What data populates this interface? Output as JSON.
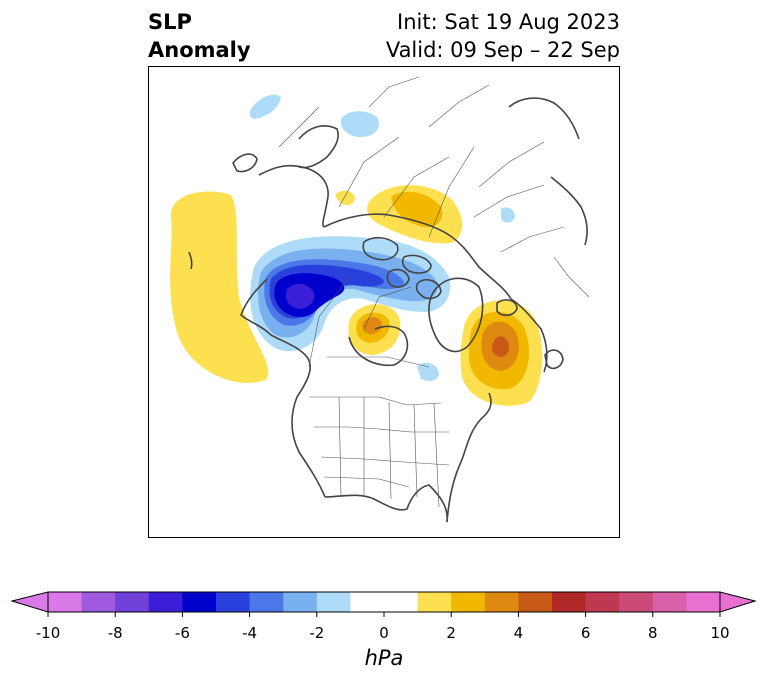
{
  "title": {
    "left_line1": "SLP",
    "left_line2": "Anomaly",
    "init": "Init: Sat 19 Aug 2023",
    "valid": "Valid: 09 Sep – 22 Sep"
  },
  "colorbar": {
    "unit": "hPa",
    "ticks": [
      "-10",
      "-8",
      "-6",
      "-4",
      "-2",
      "0",
      "2",
      "4",
      "6",
      "8",
      "10"
    ],
    "bins": [
      {
        "range": [
          -10,
          -9
        ],
        "color": "#d97ae8"
      },
      {
        "range": [
          -9,
          -8
        ],
        "color": "#a05ae0"
      },
      {
        "range": [
          -8,
          -7
        ],
        "color": "#7040d8"
      },
      {
        "range": [
          -7,
          -6
        ],
        "color": "#3a1ed8"
      },
      {
        "range": [
          -6,
          -5
        ],
        "color": "#0000cc"
      },
      {
        "range": [
          -5,
          -4
        ],
        "color": "#2a40dd"
      },
      {
        "range": [
          -4,
          -3
        ],
        "color": "#4a78e8"
      },
      {
        "range": [
          -3,
          -2
        ],
        "color": "#78b0f0"
      },
      {
        "range": [
          -2,
          -1
        ],
        "color": "#aedcf8"
      },
      {
        "range": [
          -1,
          1
        ],
        "color": "#ffffff"
      },
      {
        "range": [
          1,
          2
        ],
        "color": "#fde050"
      },
      {
        "range": [
          2,
          3
        ],
        "color": "#f2b800"
      },
      {
        "range": [
          3,
          4
        ],
        "color": "#de8a10"
      },
      {
        "range": [
          4,
          5
        ],
        "color": "#c85a18"
      },
      {
        "range": [
          5,
          6
        ],
        "color": "#b02828"
      },
      {
        "range": [
          6,
          7
        ],
        "color": "#c03850"
      },
      {
        "range": [
          7,
          8
        ],
        "color": "#cc4a78"
      },
      {
        "range": [
          8,
          9
        ],
        "color": "#d860a8"
      },
      {
        "range": [
          9,
          10
        ],
        "color": "#e870d0"
      }
    ],
    "under_color": "#d97ae8",
    "over_color": "#e870d0"
  }
}
